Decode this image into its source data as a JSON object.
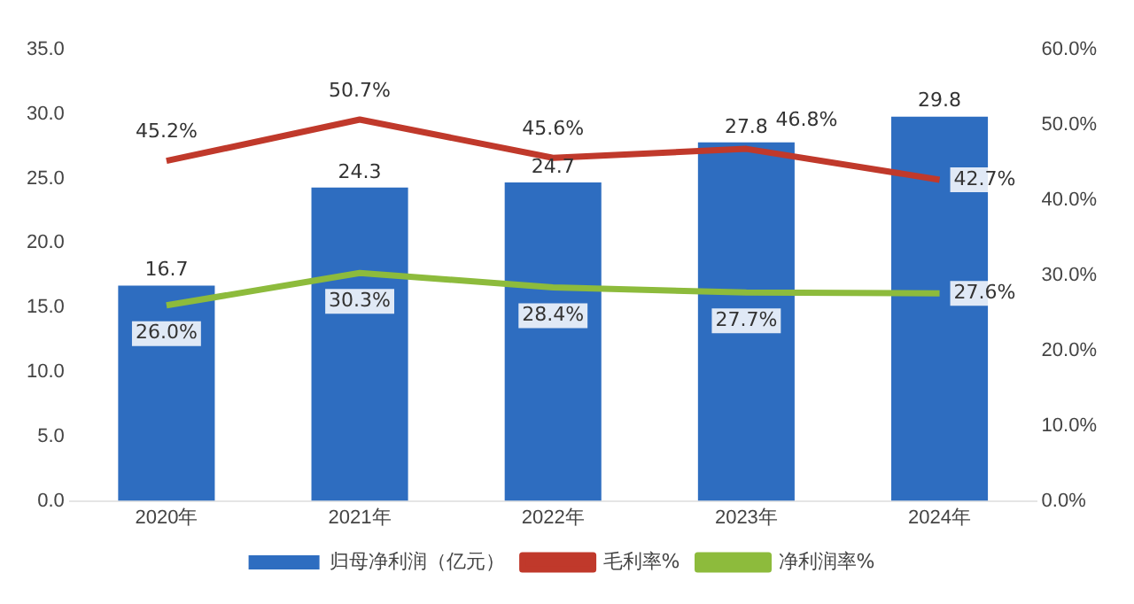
{
  "chart_data": {
    "type": "bar",
    "categories": [
      "2020年",
      "2021年",
      "2022年",
      "2023年",
      "2024年"
    ],
    "series": [
      {
        "name": "归母净利润（亿元）",
        "color": "#2e6dc0",
        "values": [
          16.7,
          24.3,
          24.7,
          27.8,
          29.8
        ],
        "value_labels": [
          "16.7",
          "24.3",
          "24.7",
          "27.8",
          "29.8"
        ]
      },
      {
        "name": "毛利率%",
        "type": "line",
        "axis": "y2",
        "color": "#c0392b",
        "values": [
          45.2,
          50.7,
          45.6,
          46.8,
          42.7
        ],
        "value_labels": [
          "45.2%",
          "50.7%",
          "45.6%",
          "46.8%",
          "42.7%"
        ]
      },
      {
        "name": "净利润率%",
        "type": "line",
        "axis": "y2",
        "color": "#8dbb3c",
        "values": [
          26.0,
          30.3,
          28.4,
          27.7,
          27.6
        ],
        "value_labels": [
          "26.0%",
          "30.3%",
          "28.4%",
          "27.7%",
          "27.6%"
        ]
      }
    ],
    "ylim": [
      0,
      35
    ],
    "yticks": [
      {
        "value": 0,
        "label": "0.0"
      },
      {
        "value": 5,
        "label": "5.0"
      },
      {
        "value": 10,
        "label": "10.0"
      },
      {
        "value": 15,
        "label": "15.0"
      },
      {
        "value": 20,
        "label": "20.0"
      },
      {
        "value": 25,
        "label": "25.0"
      },
      {
        "value": 30,
        "label": "30.0"
      },
      {
        "value": 35,
        "label": "35.0"
      }
    ],
    "y2lim": [
      0,
      60
    ],
    "y2ticks": [
      {
        "value": 0,
        "label": "0.0%"
      },
      {
        "value": 10,
        "label": "10.0%"
      },
      {
        "value": 20,
        "label": "20.0%"
      },
      {
        "value": 30,
        "label": "30.0%"
      },
      {
        "value": 40,
        "label": "40.0%"
      },
      {
        "value": 50,
        "label": "50.0%"
      },
      {
        "value": 60,
        "label": "60.0%"
      }
    ],
    "grid": false,
    "legend": "bottom",
    "marker": "none",
    "line_style": "solid"
  }
}
